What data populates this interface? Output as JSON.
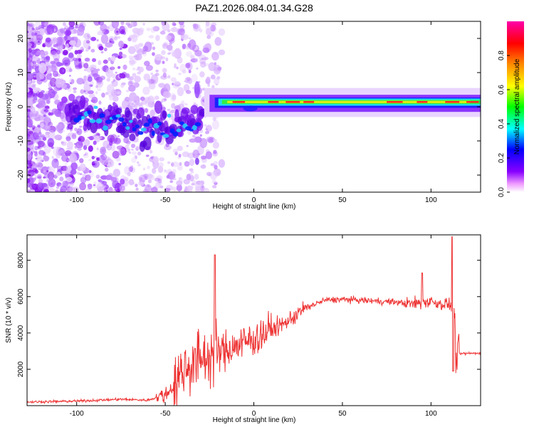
{
  "chart_data": [
    {
      "type": "heatmap",
      "title": "PAZ1.2026.084.01.34.G28",
      "xlabel": "Height of straight line (km)",
      "ylabel": "Frequency (Hz)",
      "xlim": [
        -128,
        128
      ],
      "ylim": [
        -25,
        25
      ],
      "x_ticks": [
        -100,
        -50,
        0,
        50,
        100
      ],
      "y_ticks": [
        -20,
        -10,
        0,
        10,
        20
      ],
      "colorbar": {
        "label": "Normalized spectral amplitude",
        "range": [
          0,
          1
        ],
        "ticks": [
          0.0,
          0.2,
          0.4,
          0.6,
          0.8
        ],
        "colormap": [
          "#ffffff",
          "#8800ff",
          "#0000ff",
          "#00ffff",
          "#00ff00",
          "#ffff00",
          "#ff8800",
          "#ff0000",
          "#ff00aa"
        ]
      },
      "ridge": {
        "description_points_x": [
          -100,
          -80,
          -60,
          -40,
          -30,
          -20,
          0,
          20,
          50,
          100,
          128
        ],
        "description_points_y": [
          -2,
          -4,
          -6,
          -5,
          -5,
          2,
          -0.5,
          1,
          1.5,
          1.5,
          1.5
        ]
      }
    },
    {
      "type": "line",
      "xlabel": "Height of straight line (km)",
      "ylabel": "SNR (10 * v/v)",
      "xlim": [
        -128,
        128
      ],
      "ylim": [
        0,
        9400
      ],
      "x_ticks": [
        -100,
        -50,
        0,
        50,
        100
      ],
      "y_ticks": [
        2000,
        4000,
        6000,
        8000
      ],
      "series": [
        {
          "name": "SNR",
          "color": "#ee3333",
          "x": [
            -128,
            -100,
            -75,
            -60,
            -50,
            -45,
            -40,
            -35,
            -30,
            -25,
            -22,
            -20,
            -15,
            -10,
            -5,
            0,
            5,
            10,
            15,
            20,
            25,
            30,
            35,
            40,
            50,
            60,
            70,
            80,
            85,
            90,
            95,
            100,
            105,
            110,
            112,
            113,
            114,
            115,
            128
          ],
          "y": [
            200,
            250,
            350,
            300,
            600,
            1100,
            2000,
            2300,
            2600,
            2700,
            3000,
            2900,
            3100,
            3300,
            3500,
            3700,
            3900,
            4200,
            4400,
            4700,
            5100,
            5400,
            5600,
            5800,
            5850,
            5800,
            5750,
            5700,
            5650,
            5600,
            5700,
            5750,
            5600,
            5600,
            5400,
            5300,
            2900,
            2850,
            2900
          ]
        }
      ]
    }
  ]
}
